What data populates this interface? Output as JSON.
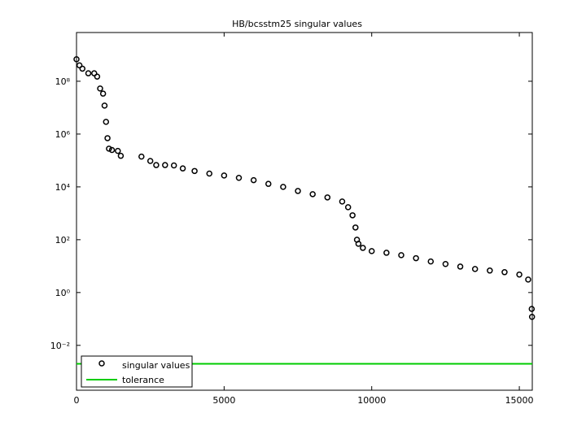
{
  "chart_data": {
    "type": "scatter",
    "title": "HB/bcsstm25 singular values",
    "xlim": [
      0,
      15439
    ],
    "xticks": [
      0,
      5000,
      10000,
      15000
    ],
    "ylim": [
      0.0002,
      7000000000
    ],
    "log_y": true,
    "yticks": [
      {
        "value": 0.01,
        "label": "10⁻²"
      },
      {
        "value": 1,
        "label": "10⁰"
      },
      {
        "value": 100,
        "label": "10²"
      },
      {
        "value": 10000,
        "label": "10⁴"
      },
      {
        "value": 1000000,
        "label": "10⁶"
      },
      {
        "value": 100000000,
        "label": "10⁸"
      }
    ],
    "legend": "lower left",
    "series": [
      {
        "name": "singular values",
        "color": "#000000",
        "marker": "circle",
        "x": [
          0,
          100,
          200,
          400,
          600,
          700,
          800,
          900,
          950,
          1000,
          1050,
          1100,
          1200,
          1400,
          1500,
          2200,
          2500,
          2700,
          3000,
          3300,
          3600,
          4000,
          4500,
          5000,
          5500,
          6000,
          6500,
          7000,
          7500,
          8000,
          8500,
          9000,
          9200,
          9350,
          9450,
          9500,
          9550,
          9700,
          10000,
          10500,
          11000,
          11500,
          12000,
          12500,
          13000,
          13500,
          14000,
          14500,
          15000,
          15300,
          15420,
          15430
        ],
        "values": [
          680000000,
          400000000,
          300000000,
          200000000,
          200000000,
          150000000,
          53000000,
          34000000,
          12000000,
          2900000,
          700000,
          280000,
          250000,
          230000,
          150000,
          140000,
          96000,
          67000,
          67000,
          65000,
          50000,
          40000,
          32000,
          27000,
          22000,
          18000,
          13000,
          10000,
          7000,
          5300,
          4000,
          2800,
          1700,
          840,
          290,
          100,
          70,
          49,
          37,
          32,
          26,
          20,
          15,
          12,
          9.6,
          7.8,
          6.8,
          5.9,
          4.8,
          3.1,
          0.24,
          0.12
        ]
      },
      {
        "name": "tolerance",
        "color": "#00cc00",
        "marker": "line",
        "x": [
          0,
          15439
        ],
        "values": [
          0.002,
          0.002
        ]
      }
    ]
  }
}
